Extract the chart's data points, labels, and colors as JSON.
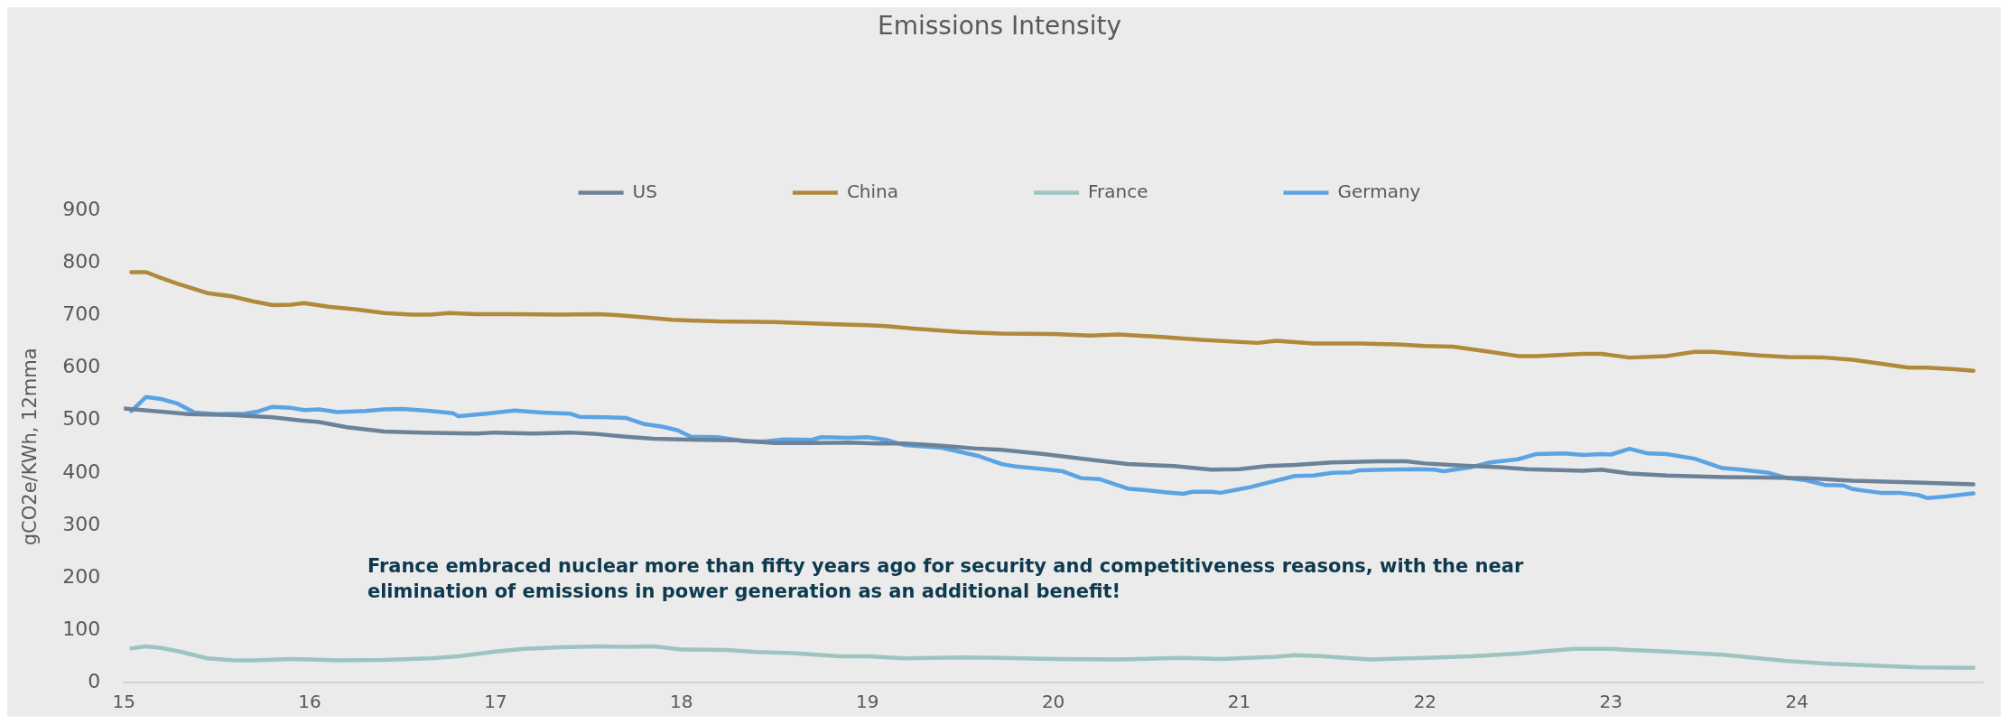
{
  "chart_data": {
    "type": "line",
    "title": "Emissions Intensity",
    "ylabel": "gCO2e/KWh, 12mma",
    "xlim": [
      15,
      25
    ],
    "xticks": [
      15,
      16,
      17,
      18,
      19,
      20,
      21,
      22,
      23,
      24
    ],
    "ylim": [
      0,
      900
    ],
    "yticks": [
      0,
      100,
      200,
      300,
      400,
      500,
      600,
      700,
      800,
      900
    ],
    "grid": false,
    "legend": "top",
    "marker": "none",
    "line_style": "solid",
    "annotations": [
      "France embraced nuclear more than fifty years ago for security and competitiveness reasons, with the near elimination of emissions in power generation as an additional benefit!"
    ],
    "series": [
      {
        "name": "US",
        "color": "#6b8299",
        "x": [
          15.0,
          15.2,
          15.35,
          15.6,
          15.8,
          15.95,
          16.05,
          16.2,
          16.4,
          16.6,
          16.9,
          17.0,
          17.2,
          17.4,
          17.55,
          17.7,
          17.85,
          18.1,
          18.3,
          18.5,
          18.7,
          18.9,
          19.05,
          19.2,
          19.4,
          19.6,
          19.72,
          19.95,
          20.2,
          20.4,
          20.65,
          20.85,
          21.0,
          21.15,
          21.3,
          21.5,
          21.75,
          21.9,
          22.0,
          22.2,
          22.4,
          22.55,
          22.85,
          22.95,
          23.1,
          23.3,
          23.6,
          23.85,
          24.05,
          24.3,
          24.6,
          24.95
        ],
        "values": [
          523,
          517,
          512,
          510,
          506,
          500,
          497,
          487,
          479,
          477,
          475,
          477,
          475,
          477,
          474,
          469,
          465,
          463,
          462,
          457,
          457,
          458,
          456,
          456,
          452,
          446,
          444,
          436,
          425,
          417,
          413,
          406,
          407,
          413,
          415,
          420,
          422,
          422,
          418,
          414,
          411,
          407,
          404,
          406,
          399,
          395,
          392,
          391,
          390,
          385,
          382,
          378
        ]
      },
      {
        "name": "China",
        "color": "#b08a3a",
        "x": [
          15.04,
          15.12,
          15.2,
          15.29,
          15.45,
          15.58,
          15.7,
          15.8,
          15.9,
          15.97,
          16.1,
          16.25,
          16.4,
          16.55,
          16.65,
          16.75,
          16.9,
          17.1,
          17.35,
          17.55,
          17.65,
          17.8,
          17.95,
          18.2,
          18.5,
          18.8,
          19.0,
          19.1,
          19.3,
          19.5,
          19.72,
          20.0,
          20.2,
          20.35,
          20.6,
          20.8,
          21.1,
          21.2,
          21.4,
          21.65,
          21.85,
          22.0,
          22.15,
          22.35,
          22.5,
          22.6,
          22.85,
          22.95,
          23.1,
          23.3,
          23.45,
          23.55,
          23.8,
          23.95,
          24.15,
          24.3,
          24.5,
          24.6,
          24.7,
          24.85,
          24.95
        ],
        "values": [
          783,
          783,
          772,
          761,
          743,
          737,
          727,
          720,
          721,
          724,
          717,
          712,
          705,
          702,
          702,
          705,
          703,
          703,
          702,
          703,
          701,
          697,
          692,
          689,
          688,
          684,
          682,
          680,
          674,
          669,
          666,
          665,
          662,
          664,
          659,
          654,
          648,
          652,
          647,
          647,
          645,
          642,
          641,
          631,
          623,
          623,
          627,
          627,
          620,
          623,
          631,
          631,
          624,
          621,
          620,
          616,
          606,
          601,
          601,
          598,
          595
        ]
      },
      {
        "name": "France",
        "color": "#9cc5c1",
        "x": [
          15.04,
          15.12,
          15.2,
          15.3,
          15.45,
          15.6,
          15.7,
          15.9,
          16.0,
          16.15,
          16.4,
          16.65,
          16.8,
          17.0,
          17.15,
          17.35,
          17.55,
          17.7,
          17.85,
          18.0,
          18.25,
          18.4,
          18.6,
          18.85,
          19.0,
          19.2,
          19.5,
          19.72,
          20.0,
          20.35,
          20.7,
          20.9,
          21.2,
          21.3,
          21.45,
          21.7,
          22.0,
          22.25,
          22.5,
          22.65,
          22.8,
          23.0,
          23.1,
          23.3,
          23.6,
          23.8,
          23.95,
          24.15,
          24.5,
          24.65,
          24.95
        ],
        "values": [
          65,
          69,
          66,
          59,
          46,
          42,
          42,
          45,
          44,
          42,
          43,
          46,
          50,
          59,
          64,
          67,
          69,
          68,
          69,
          63,
          62,
          58,
          56,
          50,
          50,
          46,
          48,
          47,
          45,
          44,
          47,
          45,
          49,
          52,
          50,
          44,
          47,
          50,
          55,
          60,
          64,
          64,
          62,
          59,
          53,
          46,
          41,
          36,
          31,
          29,
          28
        ]
      },
      {
        "name": "Germany",
        "color": "#5ba3e3",
        "x": [
          15.04,
          15.12,
          15.2,
          15.29,
          15.38,
          15.5,
          15.65,
          15.72,
          15.8,
          15.9,
          15.97,
          16.05,
          16.15,
          16.3,
          16.4,
          16.5,
          16.65,
          16.77,
          16.8,
          16.95,
          17.1,
          17.25,
          17.4,
          17.45,
          17.6,
          17.7,
          17.8,
          17.9,
          17.98,
          18.05,
          18.2,
          18.35,
          18.45,
          18.55,
          18.7,
          18.75,
          18.9,
          19.0,
          19.1,
          19.2,
          19.4,
          19.6,
          19.72,
          19.8,
          19.95,
          20.05,
          20.15,
          20.25,
          20.4,
          20.5,
          20.6,
          20.7,
          20.75,
          20.85,
          20.9,
          21.05,
          21.15,
          21.3,
          21.4,
          21.5,
          21.6,
          21.65,
          21.8,
          21.95,
          22.05,
          22.1,
          22.25,
          22.35,
          22.5,
          22.6,
          22.75,
          22.85,
          22.95,
          23.0,
          23.1,
          23.2,
          23.3,
          23.45,
          23.6,
          23.7,
          23.85,
          23.95,
          24.05,
          24.15,
          24.25,
          24.3,
          24.45,
          24.55,
          24.65,
          24.7,
          24.8,
          24.95
        ],
        "values": [
          518,
          545,
          541,
          532,
          515,
          512,
          513,
          517,
          526,
          524,
          520,
          521,
          516,
          518,
          521,
          522,
          518,
          514,
          508,
          513,
          519,
          515,
          513,
          507,
          506,
          505,
          493,
          488,
          481,
          469,
          468,
          460,
          460,
          464,
          463,
          468,
          467,
          468,
          463,
          453,
          448,
          432,
          417,
          412,
          407,
          403,
          390,
          388,
          370,
          367,
          363,
          360,
          364,
          364,
          362,
          372,
          381,
          394,
          395,
          400,
          401,
          405,
          406,
          407,
          406,
          403,
          411,
          420,
          426,
          436,
          437,
          434,
          436,
          435,
          446,
          437,
          436,
          427,
          409,
          406,
          400,
          390,
          386,
          377,
          376,
          369,
          362,
          362,
          358,
          352,
          355,
          361
        ]
      }
    ]
  }
}
